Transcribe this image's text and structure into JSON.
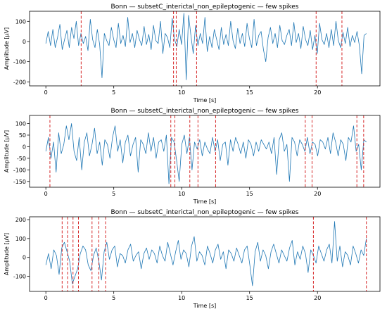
{
  "chart_data": [
    {
      "type": "line",
      "title": "Bonn — subsetC_interictal_non_epileptogenic — few spikes",
      "xlabel": "Time [s]",
      "ylabel": "Amplitude [μV]",
      "xlim": [
        -1.2,
        24.6
      ],
      "ylim": [
        -220,
        150
      ],
      "xticks": [
        0,
        5,
        10,
        15,
        20
      ],
      "yticks": [
        -200,
        -100,
        0,
        100
      ],
      "duration": 23.6,
      "color": "#1f77b4",
      "spike_color": "#d62728",
      "series": [
        {
          "values": [
            -10,
            50,
            -20,
            60,
            -30,
            20,
            85,
            -40,
            10,
            55,
            -30,
            70,
            15,
            100,
            -20,
            40,
            -10,
            25,
            -45,
            110,
            10,
            -30,
            60,
            -15,
            -180,
            40,
            5,
            -20,
            70,
            10,
            -30,
            90,
            -10,
            30,
            -25,
            120,
            -5,
            40,
            -30,
            55,
            10,
            -20,
            75,
            -15,
            35,
            -40,
            80,
            5,
            -10,
            100,
            -60,
            40,
            20,
            -30,
            115,
            10,
            -25,
            60,
            -15,
            140,
            -190,
            130,
            30,
            -60,
            80,
            -20,
            40,
            -10,
            120,
            -50,
            25,
            -30,
            60,
            10,
            -40,
            70,
            -15,
            35,
            -20,
            100,
            5,
            -35,
            65,
            -10,
            40,
            -25,
            90,
            15,
            -30,
            110,
            -20,
            30,
            50,
            -40,
            -100,
            20,
            70,
            -10,
            40,
            -30,
            80,
            5,
            -15,
            30,
            60,
            -20,
            95,
            -5,
            40,
            -35,
            75,
            10,
            -20,
            55,
            -40,
            30,
            -60,
            90,
            10,
            -15,
            40,
            -30,
            60,
            -20,
            100,
            5,
            -30,
            45,
            -10,
            70,
            -25,
            30,
            -5,
            50,
            -20,
            -160,
            30,
            40
          ]
        }
      ],
      "spikes": [
        2.6,
        9.4,
        9.6,
        11.1,
        19.9,
        21.8
      ]
    },
    {
      "type": "line",
      "title": "Bonn — subsetC_interictal_non_epileptogenic — few spikes",
      "xlabel": "Time [s]",
      "ylabel": "Amplitude [μV]",
      "xlim": [
        -1.2,
        24.6
      ],
      "ylim": [
        -175,
        135
      ],
      "xticks": [
        0,
        5,
        10,
        15,
        20
      ],
      "yticks": [
        -150,
        -100,
        -50,
        0,
        50,
        100
      ],
      "duration": 23.6,
      "color": "#1f77b4",
      "spike_color": "#d62728",
      "series": [
        {
          "values": [
            -20,
            40,
            -50,
            20,
            -110,
            60,
            -30,
            10,
            90,
            30,
            100,
            -20,
            -60,
            40,
            -100,
            20,
            60,
            -40,
            10,
            80,
            -30,
            20,
            -80,
            30,
            10,
            -50,
            40,
            90,
            -20,
            30,
            -70,
            20,
            50,
            -40,
            10,
            40,
            -110,
            30,
            10,
            -30,
            60,
            -20,
            40,
            -50,
            20,
            30,
            -20,
            50,
            -160,
            40,
            20,
            -60,
            -150,
            10,
            50,
            -30,
            40,
            -100,
            20,
            -10,
            30,
            -40,
            20,
            -10,
            -30,
            40,
            -20,
            30,
            -60,
            10,
            20,
            -80,
            30,
            -20,
            40,
            10,
            -30,
            20,
            -50,
            30,
            10,
            -40,
            20,
            -20,
            30,
            10,
            -10,
            20,
            -30,
            40,
            -120,
            30,
            60,
            -20,
            10,
            -150,
            40,
            20,
            -40,
            30,
            10,
            -20,
            40,
            -30,
            20,
            10,
            -40,
            30,
            20,
            -10,
            40,
            -30,
            60,
            20,
            -40,
            30,
            10,
            -60,
            40,
            20,
            90,
            -20,
            10,
            -100,
            30,
            20
          ]
        }
      ],
      "spikes": [
        0.3,
        9.2,
        9.5,
        10.6,
        11.2,
        12.5,
        19.1,
        19.6,
        22.9,
        23.4
      ]
    },
    {
      "type": "line",
      "title": "Bonn — subsetC_interictal_non_epileptogenic — few spikes",
      "xlabel": "Time [s]",
      "ylabel": "Amplitude [μV]",
      "xlim": [
        -1.2,
        24.6
      ],
      "ylim": [
        -180,
        215
      ],
      "xticks": [
        0,
        5,
        10,
        15,
        20
      ],
      "yticks": [
        -100,
        0,
        100,
        200
      ],
      "duration": 23.6,
      "color": "#1f77b4",
      "spike_color": "#d62728",
      "series": [
        {
          "values": [
            -40,
            20,
            -60,
            40,
            10,
            -90,
            50,
            80,
            30,
            -20,
            -140,
            -100,
            -60,
            20,
            60,
            40,
            -40,
            -70,
            10,
            50,
            -20,
            -120,
            30,
            80,
            -10,
            40,
            60,
            -50,
            20,
            10,
            -30,
            40,
            70,
            -20,
            10,
            30,
            -60,
            20,
            50,
            -10,
            40,
            20,
            -30,
            60,
            10,
            -20,
            80,
            20,
            -40,
            30,
            90,
            -10,
            40,
            20,
            -50,
            60,
            110,
            -20,
            30,
            10,
            -40,
            60,
            20,
            -30,
            40,
            70,
            -10,
            30,
            -60,
            40,
            20,
            -20,
            50,
            10,
            -30,
            40,
            60,
            -40,
            -150,
            30,
            80,
            -20,
            40,
            10,
            -60,
            30,
            70,
            20,
            -30,
            40,
            10,
            -20,
            50,
            90,
            -40,
            30,
            -10,
            60,
            20,
            -80,
            40,
            10,
            -30,
            60,
            20,
            -20,
            40,
            70,
            -30,
            190,
            -20,
            60,
            -50,
            30,
            10,
            -40,
            60,
            20,
            -30,
            40,
            10,
            100
          ]
        }
      ],
      "spikes": [
        1.2,
        1.6,
        2.0,
        2.4,
        3.4,
        3.9,
        4.4,
        19.7,
        23.6
      ]
    }
  ]
}
